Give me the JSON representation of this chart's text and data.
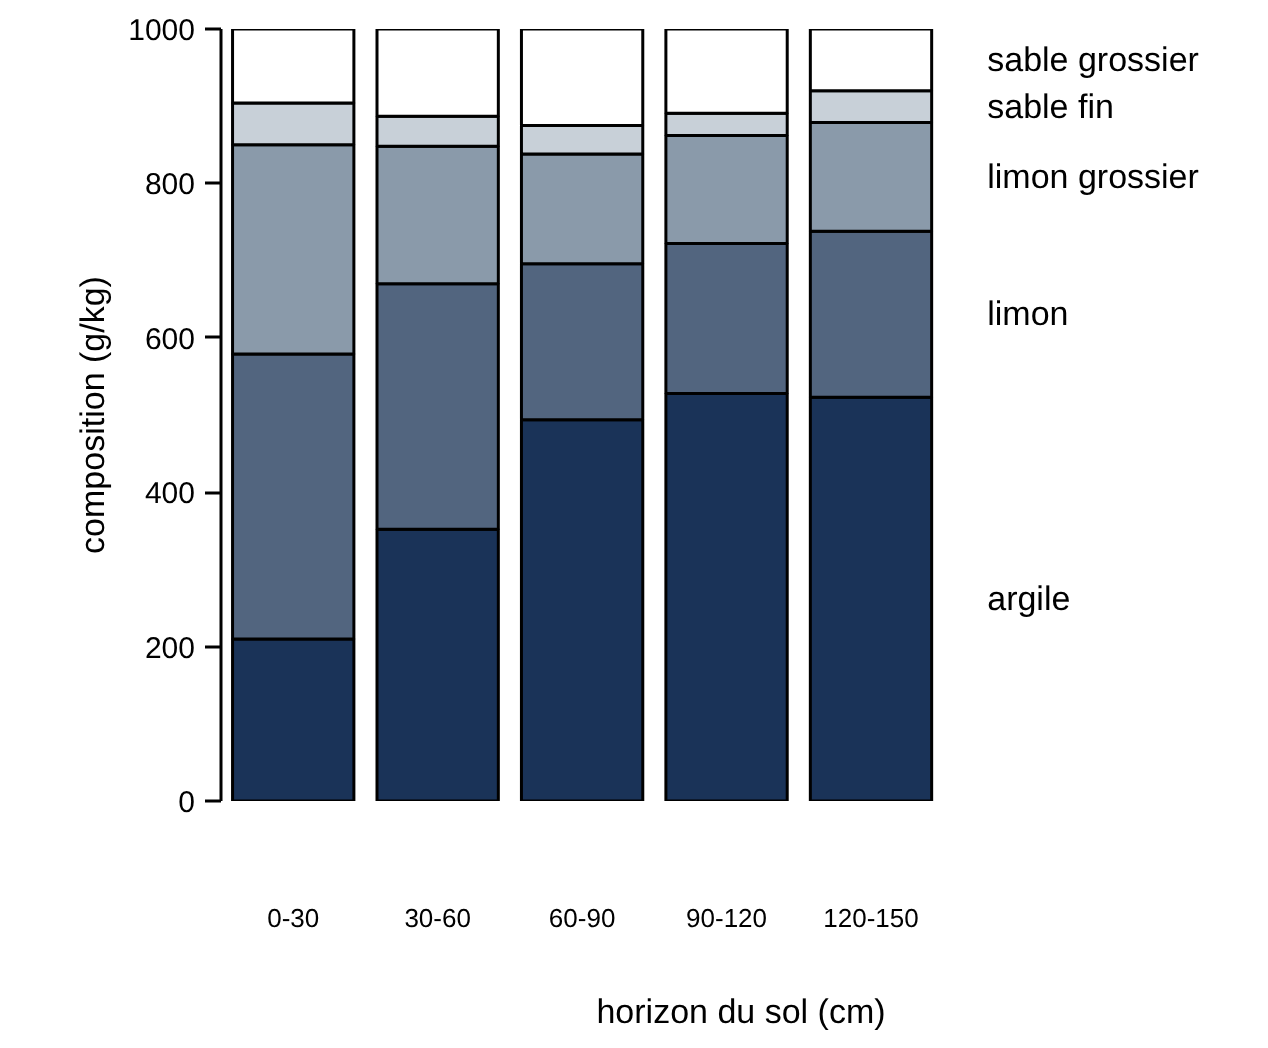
{
  "chart_data": {
    "type": "bar",
    "stacked": true,
    "xlabel": "horizon du sol (cm)",
    "ylabel": "composition (g/kg)",
    "categories": [
      "0-30",
      "30-60",
      "60-90",
      "90-120",
      "120-150"
    ],
    "series": [
      {
        "name": "argile",
        "color": "#1a3358",
        "values": [
          210,
          352,
          494,
          528,
          523
        ]
      },
      {
        "name": "limon",
        "color": "#52657f",
        "values": [
          369,
          318,
          202,
          194,
          215
        ]
      },
      {
        "name": "limon grossier",
        "color": "#8a9aaa",
        "values": [
          271,
          178,
          142,
          140,
          141
        ]
      },
      {
        "name": "sable fin",
        "color": "#c8d0d8",
        "values": [
          54,
          39,
          37,
          29,
          41
        ]
      },
      {
        "name": "sable grossier",
        "color": "#ffffff",
        "values": [
          96,
          113,
          125,
          109,
          80
        ]
      }
    ],
    "ylim": [
      0,
      1000
    ],
    "yticks": [
      0,
      200,
      400,
      600,
      800,
      1000
    ],
    "grid": false
  }
}
